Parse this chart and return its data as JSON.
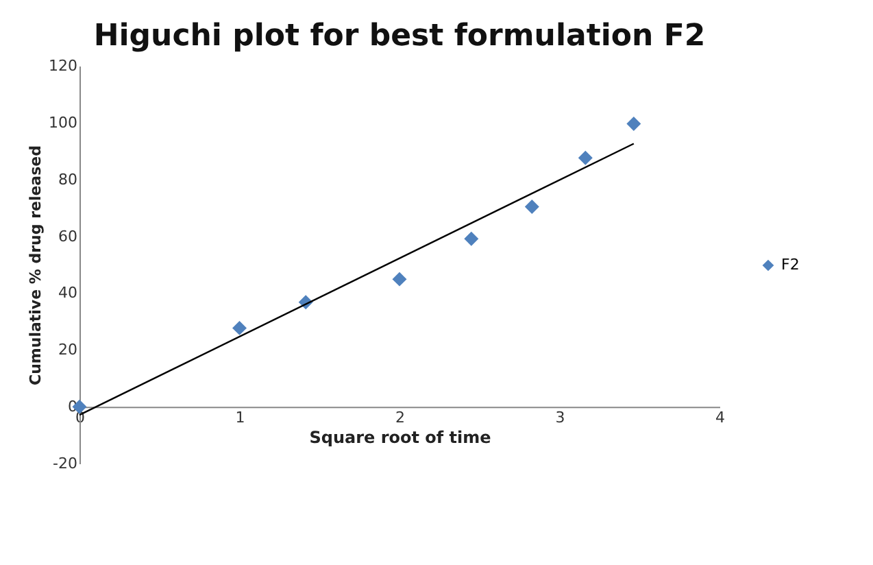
{
  "chart_data": {
    "type": "scatter",
    "title": "Higuchi plot for best formulation F2",
    "xlabel": "Square root of time",
    "ylabel": "Cumulative % drug released",
    "x": [
      0,
      1,
      1.414,
      2,
      2.449,
      2.828,
      3.162,
      3.464
    ],
    "series": [
      {
        "name": "F2",
        "color": "#4f81bd",
        "values": [
          0,
          27.7,
          36.8,
          44.9,
          59.1,
          70.4,
          87.6,
          99.6
        ],
        "marker": "diamond"
      },
      {
        "type": "line",
        "color": "#000000",
        "x": [
          0,
          3.464
        ],
        "values": [
          -2.9,
          92.6
        ],
        "marker": "none"
      }
    ],
    "xlim": [
      0,
      4
    ],
    "xticks": [
      0,
      1,
      2,
      3,
      4
    ],
    "ylim": [
      -20,
      120
    ],
    "yticks": [
      -20,
      0,
      20,
      40,
      60,
      80,
      100,
      120
    ],
    "grid": false,
    "legend": "right"
  }
}
